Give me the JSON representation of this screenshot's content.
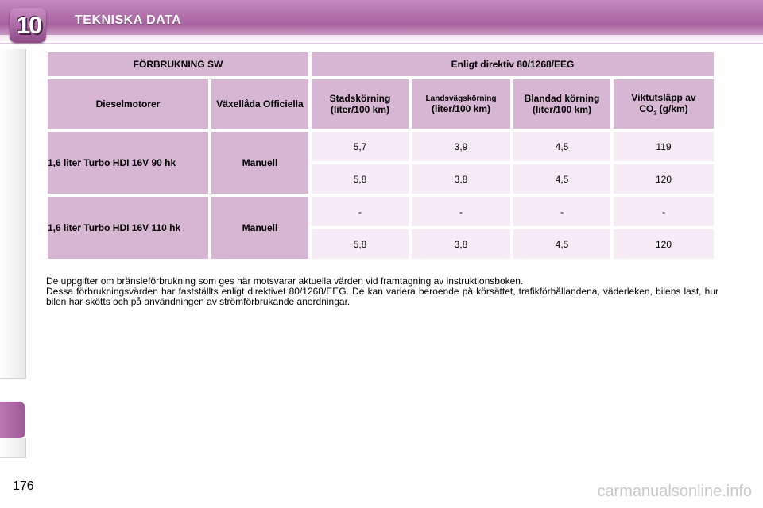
{
  "header": {
    "chapter": "10",
    "title": "TEKNISKA DATA"
  },
  "table": {
    "top_left": "FÖRBRUKNING SW",
    "top_right": "Enligt direktiv 80/1268/EEG",
    "col_engine": "Dieselmotorer",
    "col_gearbox": "Växellåda Officiella",
    "col_city": "Stadskörning (liter/100 km)",
    "col_highway_top": "Landsvägskörning",
    "col_highway_bottom": "(liter/100 km)",
    "col_mixed": "Blandad körning (liter/100 km)",
    "col_co2_a": "Viktutsläpp av",
    "col_co2_b": "CO",
    "col_co2_sub": "2",
    "col_co2_c": " (g/km)",
    "rows": [
      {
        "engine": "1,6 liter Turbo HDI 16V 90 hk",
        "gearbox": "Manuell",
        "lines": [
          [
            "5,7",
            "3,9",
            "4,5",
            "119"
          ],
          [
            "5,8",
            "3,8",
            "4,5",
            "120"
          ]
        ]
      },
      {
        "engine": "1,6 liter Turbo HDI 16V 110 hk",
        "gearbox": "Manuell",
        "lines": [
          [
            "-",
            "-",
            "-",
            "-"
          ],
          [
            "5,8",
            "3,8",
            "4,5",
            "120"
          ]
        ]
      }
    ]
  },
  "note": {
    "p1": "De uppgifter om bränsleförbrukning som ges här motsvarar aktuella värden vid framtagning av instruktionsboken.",
    "p2": "Dessa förbrukningsvärden har fastställts enligt direktivet 80/1268/EEG. De kan variera beroende på körsättet, trafikförhållandena, väderleken, bilens last, hur bilen har skötts och på användningen av strömförbrukande anordningar."
  },
  "page_number": "176",
  "watermark": "carmanualsonline.info"
}
